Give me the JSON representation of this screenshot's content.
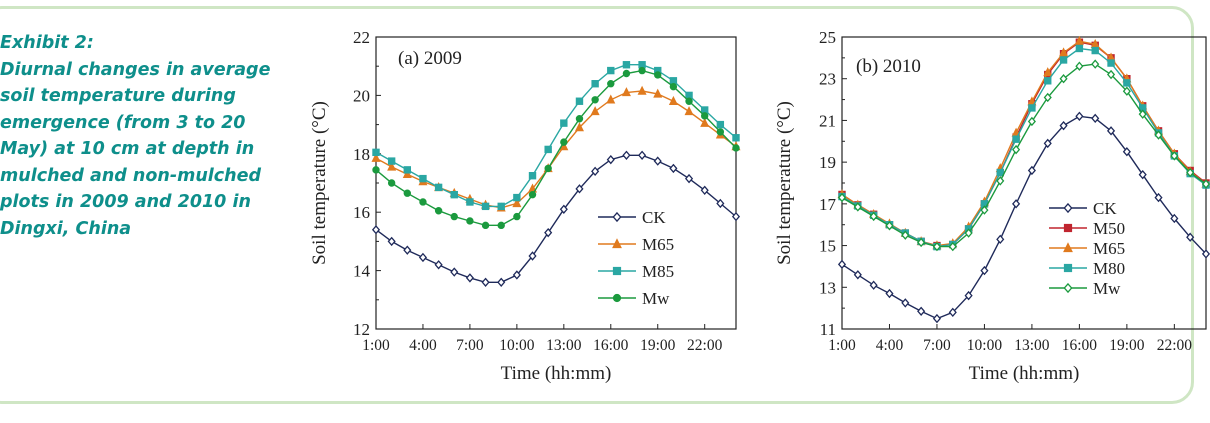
{
  "caption": {
    "heading": "Exhibit 2:",
    "lines": [
      "Diurnal changes in average",
      "soil temperature during",
      "emergence (from 3 to 20",
      "May) at 10 cm at depth in",
      "mulched and non-mulched",
      "plots in 2009 and 2010 in",
      "Dingxi, China"
    ]
  },
  "chart_data": [
    {
      "type": "line",
      "title": "(a) 2009",
      "xlabel": "Time (hh:mm)",
      "ylabel": "Soil temperature (°C)",
      "x": [
        1,
        2,
        3,
        4,
        5,
        6,
        7,
        8,
        9,
        10,
        11,
        12,
        13,
        14,
        15,
        16,
        17,
        18,
        19,
        20,
        21,
        22,
        23,
        24
      ],
      "xticks": [
        "1:00",
        "4:00",
        "7:00",
        "10:00",
        "13:00",
        "16:00",
        "19:00",
        "22:00"
      ],
      "xtick_hours": [
        1,
        4,
        7,
        10,
        13,
        16,
        19,
        22
      ],
      "xlim": [
        1,
        24
      ],
      "ylim": [
        12,
        22
      ],
      "yticks": [
        12,
        14,
        16,
        18,
        20,
        22
      ],
      "legend": "lower-right",
      "series": [
        {
          "name": "CK",
          "color": "#1f2a5a",
          "marker": "diamond",
          "values": [
            15.4,
            15.0,
            14.7,
            14.45,
            14.2,
            13.95,
            13.75,
            13.6,
            13.6,
            13.85,
            14.5,
            15.3,
            16.1,
            16.8,
            17.4,
            17.8,
            17.95,
            17.95,
            17.75,
            17.5,
            17.15,
            16.75,
            16.3,
            15.85
          ]
        },
        {
          "name": "M65",
          "color": "#e07a1e",
          "marker": "triangle",
          "values": [
            17.85,
            17.55,
            17.3,
            17.05,
            16.85,
            16.65,
            16.45,
            16.25,
            16.15,
            16.3,
            16.8,
            17.5,
            18.25,
            18.9,
            19.45,
            19.85,
            20.1,
            20.15,
            20.05,
            19.8,
            19.45,
            19.05,
            18.65,
            18.25
          ]
        },
        {
          "name": "M85",
          "color": "#2aa7a3",
          "marker": "square",
          "values": [
            18.05,
            17.75,
            17.45,
            17.15,
            16.85,
            16.6,
            16.35,
            16.2,
            16.2,
            16.5,
            17.25,
            18.15,
            19.05,
            19.8,
            20.4,
            20.85,
            21.05,
            21.05,
            20.85,
            20.5,
            20.0,
            19.5,
            19.0,
            18.55
          ]
        },
        {
          "name": "Mw",
          "color": "#1b9a3e",
          "marker": "circle",
          "values": [
            17.45,
            17.0,
            16.65,
            16.35,
            16.05,
            15.85,
            15.7,
            15.55,
            15.55,
            15.85,
            16.6,
            17.5,
            18.4,
            19.2,
            19.85,
            20.4,
            20.75,
            20.85,
            20.7,
            20.3,
            19.8,
            19.3,
            18.75,
            18.2
          ]
        }
      ]
    },
    {
      "type": "line",
      "title": "(b) 2010",
      "xlabel": "Time (hh:mm)",
      "ylabel": "Soil temperature (°C)",
      "x": [
        1,
        2,
        3,
        4,
        5,
        6,
        7,
        8,
        9,
        10,
        11,
        12,
        13,
        14,
        15,
        16,
        17,
        18,
        19,
        20,
        21,
        22,
        23,
        24
      ],
      "xticks": [
        "1:00",
        "4:00",
        "7:00",
        "10:00",
        "13:00",
        "16:00",
        "19:00",
        "22:00"
      ],
      "xtick_hours": [
        1,
        4,
        7,
        10,
        13,
        16,
        19,
        22
      ],
      "xlim": [
        1,
        24
      ],
      "ylim": [
        11,
        25
      ],
      "yticks": [
        11,
        13,
        15,
        17,
        19,
        21,
        23,
        25
      ],
      "legend": "lower-right",
      "series": [
        {
          "name": "CK",
          "color": "#1f2a5a",
          "marker": "diamond",
          "values": [
            14.1,
            13.6,
            13.1,
            12.7,
            12.25,
            11.85,
            11.5,
            11.8,
            12.6,
            13.8,
            15.3,
            17.0,
            18.6,
            19.9,
            20.75,
            21.2,
            21.1,
            20.5,
            19.5,
            18.4,
            17.3,
            16.3,
            15.4,
            14.6
          ]
        },
        {
          "name": "M50",
          "color": "#c0252f",
          "marker": "square",
          "values": [
            17.45,
            16.95,
            16.5,
            16.0,
            15.6,
            15.2,
            15.0,
            15.05,
            15.8,
            17.0,
            18.5,
            20.2,
            21.8,
            23.2,
            24.2,
            24.75,
            24.6,
            24.0,
            23.0,
            21.7,
            20.5,
            19.4,
            18.6,
            18.0
          ]
        },
        {
          "name": "M65",
          "color": "#e07a1e",
          "marker": "triangle",
          "values": [
            17.45,
            16.95,
            16.5,
            16.05,
            15.6,
            15.2,
            15.0,
            15.1,
            15.9,
            17.1,
            18.7,
            20.4,
            21.9,
            23.3,
            24.25,
            24.8,
            24.65,
            24.0,
            23.0,
            21.7,
            20.5,
            19.4,
            18.55,
            17.95
          ]
        },
        {
          "name": "M80",
          "color": "#2aa7a3",
          "marker": "square",
          "values": [
            17.35,
            16.9,
            16.45,
            16.0,
            15.6,
            15.2,
            14.95,
            15.05,
            15.8,
            17.0,
            18.5,
            20.1,
            21.6,
            22.9,
            23.9,
            24.45,
            24.35,
            23.75,
            22.8,
            21.6,
            20.4,
            19.3,
            18.45,
            17.9
          ]
        },
        {
          "name": "Mw",
          "color": "#1b9a3e",
          "marker": "diamond",
          "values": [
            17.3,
            16.85,
            16.4,
            15.95,
            15.5,
            15.15,
            14.95,
            14.95,
            15.6,
            16.7,
            18.1,
            19.6,
            20.95,
            22.1,
            23.0,
            23.6,
            23.7,
            23.2,
            22.4,
            21.3,
            20.3,
            19.3,
            18.5,
            17.95
          ]
        }
      ]
    }
  ]
}
